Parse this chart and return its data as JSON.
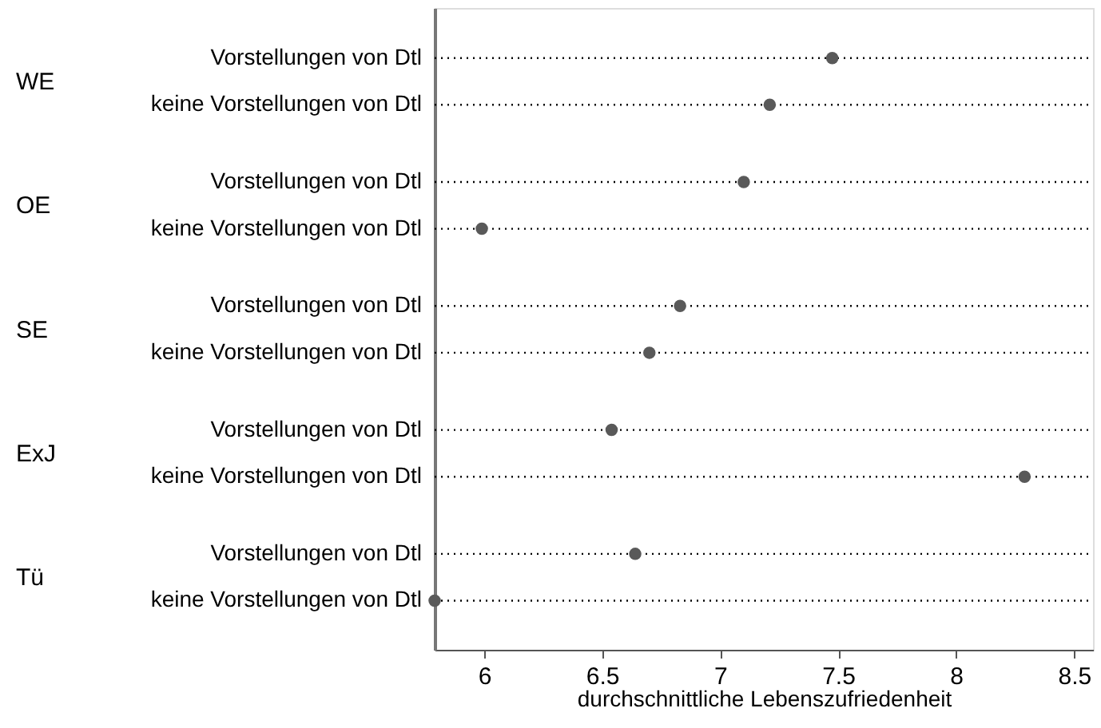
{
  "chart_data": {
    "type": "scatter",
    "orientation": "horizontal",
    "categories": [
      "Vorstellungen von Dtl",
      "keine Vorstellungen von Dtl",
      "Vorstellungen von Dtl",
      "keine Vorstellungen von Dtl",
      "Vorstellungen von Dtl",
      "keine Vorstellungen von Dtl",
      "Vorstellungen von Dtl",
      "keine Vorstellungen von Dtl",
      "Vorstellungen von Dtl",
      "keine Vorstellungen von Dtl"
    ],
    "series": [
      {
        "color": "#595959",
        "values": [
          7.475,
          7.21,
          7.1,
          5.99,
          6.83,
          6.7,
          6.54,
          8.29,
          6.64,
          5.79
        ]
      }
    ],
    "annotations": [
      "WE",
      "OE",
      "SE",
      "ExJ",
      "Tü"
    ],
    "xlabel": "durchschnittliche Lebenszufriedenheit",
    "xlim": [
      5.79,
      8.58
    ],
    "xticks": [
      {
        "value": 6,
        "label": "6"
      },
      6.5,
      {
        "value": 7,
        "label": "7"
      },
      7.5,
      {
        "value": 8,
        "label": "8"
      },
      8.5
    ],
    "grid": "y",
    "marker": "circle"
  }
}
